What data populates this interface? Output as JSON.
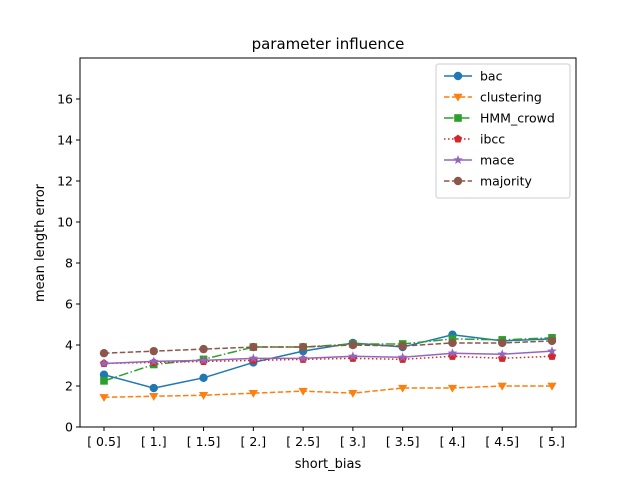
{
  "chart_data": {
    "type": "line",
    "title": "parameter influence",
    "xlabel": "short_bias",
    "ylabel": "mean length error",
    "categories": [
      "[ 0.5]",
      "[ 1.]",
      "[ 1.5]",
      "[ 2.]",
      "[ 2.5]",
      "[ 3.]",
      "[ 3.5]",
      "[ 4.]",
      "[ 4.5]",
      "[ 5.]"
    ],
    "ylim": [
      0,
      18
    ],
    "yticks": [
      0,
      2,
      4,
      6,
      8,
      10,
      12,
      14,
      16
    ],
    "grid": false,
    "legend_position": "top-right",
    "series": [
      {
        "name": "bac",
        "color": "#1f77b4",
        "dash": "solid",
        "marker": "circle",
        "values": [
          2.55,
          1.9,
          2.4,
          3.15,
          3.7,
          4.1,
          3.9,
          4.5,
          4.2,
          4.3
        ]
      },
      {
        "name": "clustering",
        "color": "#ff7f0e",
        "dash": "dashed",
        "marker": "triangle-down",
        "values": [
          1.45,
          1.5,
          1.55,
          1.65,
          1.75,
          1.65,
          1.9,
          1.9,
          2.0,
          2.0
        ]
      },
      {
        "name": "HMM_crowd",
        "color": "#2ca02c",
        "dash": "dashdot",
        "marker": "square",
        "values": [
          2.25,
          3.05,
          3.3,
          3.9,
          3.9,
          4.05,
          4.05,
          4.3,
          4.25,
          4.35
        ]
      },
      {
        "name": "ibcc",
        "color": "#d62728",
        "dash": "dotted",
        "marker": "pentagon",
        "values": [
          3.1,
          3.15,
          3.2,
          3.25,
          3.3,
          3.35,
          3.3,
          3.45,
          3.35,
          3.45
        ]
      },
      {
        "name": "mace",
        "color": "#9467bd",
        "dash": "solid",
        "marker": "star",
        "values": [
          3.1,
          3.2,
          3.25,
          3.35,
          3.35,
          3.45,
          3.4,
          3.6,
          3.55,
          3.7
        ]
      },
      {
        "name": "majority",
        "color": "#8c564b",
        "dash": "dashed",
        "marker": "circle",
        "values": [
          3.6,
          3.7,
          3.8,
          3.9,
          3.9,
          4.0,
          3.95,
          4.1,
          4.1,
          4.2
        ]
      }
    ]
  }
}
